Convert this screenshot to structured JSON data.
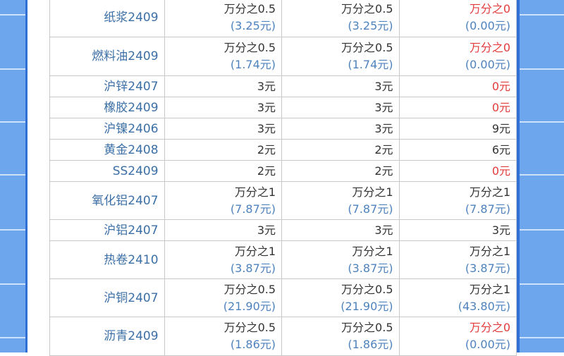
{
  "colors": {
    "name": "#3b6fa6",
    "value": "#333333",
    "paren": "#4d82bd",
    "zero": "#e23b3b",
    "background": "#6ea6ee"
  },
  "rows": [
    {
      "name": "纸浆2409",
      "cells": [
        {
          "main": "万分之0.5",
          "sub": "(3.25元)"
        },
        {
          "main": "万分之0.5",
          "sub": "(3.25元)"
        },
        {
          "main": "万分之0",
          "sub": "(0.00元)",
          "red": true
        }
      ]
    },
    {
      "name": "燃料油2409",
      "cells": [
        {
          "main": "万分之0.5",
          "sub": "(1.74元)"
        },
        {
          "main": "万分之0.5",
          "sub": "(1.74元)"
        },
        {
          "main": "万分之0",
          "sub": "(0.00元)",
          "red": true
        }
      ]
    },
    {
      "name": "沪锌2407",
      "cells": [
        {
          "main": "3元"
        },
        {
          "main": "3元"
        },
        {
          "main": "0元",
          "red": true
        }
      ]
    },
    {
      "name": "橡胶2409",
      "cells": [
        {
          "main": "3元"
        },
        {
          "main": "3元"
        },
        {
          "main": "0元",
          "red": true
        }
      ]
    },
    {
      "name": "沪镍2406",
      "cells": [
        {
          "main": "3元"
        },
        {
          "main": "3元"
        },
        {
          "main": "9元"
        }
      ]
    },
    {
      "name": "黄金2408",
      "cells": [
        {
          "main": "2元"
        },
        {
          "main": "2元"
        },
        {
          "main": "6元"
        }
      ]
    },
    {
      "name": "SS2409",
      "cells": [
        {
          "main": "2元"
        },
        {
          "main": "2元"
        },
        {
          "main": "0元",
          "red": true
        }
      ]
    },
    {
      "name": "氧化铝2407",
      "cells": [
        {
          "main": "万分之1",
          "sub": "(7.87元)"
        },
        {
          "main": "万分之1",
          "sub": "(7.87元)"
        },
        {
          "main": "万分之1",
          "sub": "(7.87元)"
        }
      ]
    },
    {
      "name": "沪铝2407",
      "cells": [
        {
          "main": "3元"
        },
        {
          "main": "3元"
        },
        {
          "main": "3元"
        }
      ]
    },
    {
      "name": "热卷2410",
      "cells": [
        {
          "main": "万分之1",
          "sub": "(3.87元)"
        },
        {
          "main": "万分之1",
          "sub": "(3.87元)"
        },
        {
          "main": "万分之1",
          "sub": "(3.87元)"
        }
      ]
    },
    {
      "name": "沪铜2407",
      "cells": [
        {
          "main": "万分之0.5",
          "sub": "(21.90元)"
        },
        {
          "main": "万分之0.5",
          "sub": "(21.90元)"
        },
        {
          "main": "万分之1",
          "sub": "(43.80元)"
        }
      ]
    },
    {
      "name": "沥青2409",
      "cells": [
        {
          "main": "万分之0.5",
          "sub": "(1.86元)"
        },
        {
          "main": "万分之0.5",
          "sub": "(1.86元)"
        },
        {
          "main": "万分之0",
          "sub": "(0.00元)",
          "red": true
        }
      ]
    }
  ]
}
